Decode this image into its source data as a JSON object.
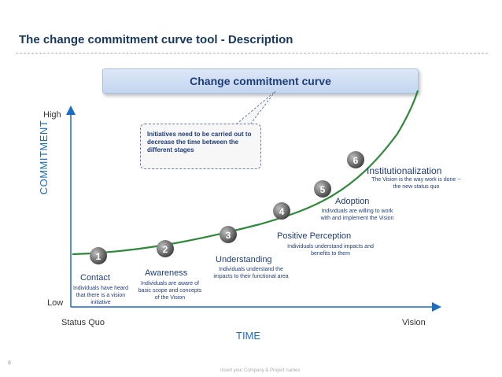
{
  "title": "The change commitment curve tool - Description",
  "banner": "Change commitment curve",
  "y_axis": {
    "label": "COMMITMENT",
    "high": "High",
    "low": "Low"
  },
  "x_axis": {
    "label": "TIME",
    "start": "Status Quo",
    "end": "Vision"
  },
  "callout": "Initiatives need to be carried out to decrease the time between the different stages",
  "stages": [
    {
      "number": "1",
      "name": "Contact",
      "description": "Individuals have heard that there is a vision initiative"
    },
    {
      "number": "2",
      "name": "Awareness",
      "description": "Individuals are aware of basic scope and concepts of the Vision"
    },
    {
      "number": "3",
      "name": "Understanding",
      "description": "Individuals understand the impacts to their functional area"
    },
    {
      "number": "4",
      "name": "Positive Perception",
      "description": "Individuals understand impacts and benefits to them"
    },
    {
      "number": "5",
      "name": "Adoption",
      "description": "Individuals are willing to work with and implement the Vision"
    },
    {
      "number": "6",
      "name": "Institutionalization",
      "description": "The Vision is the way work is done -- the new status quo"
    }
  ],
  "footer": {
    "page": "8",
    "text": "Insert your Company & Project names"
  },
  "colors": {
    "curve": "#2e8a3a",
    "circle": "#6d6d6d",
    "accent": "#1a6fc4",
    "title": "#17375e"
  }
}
